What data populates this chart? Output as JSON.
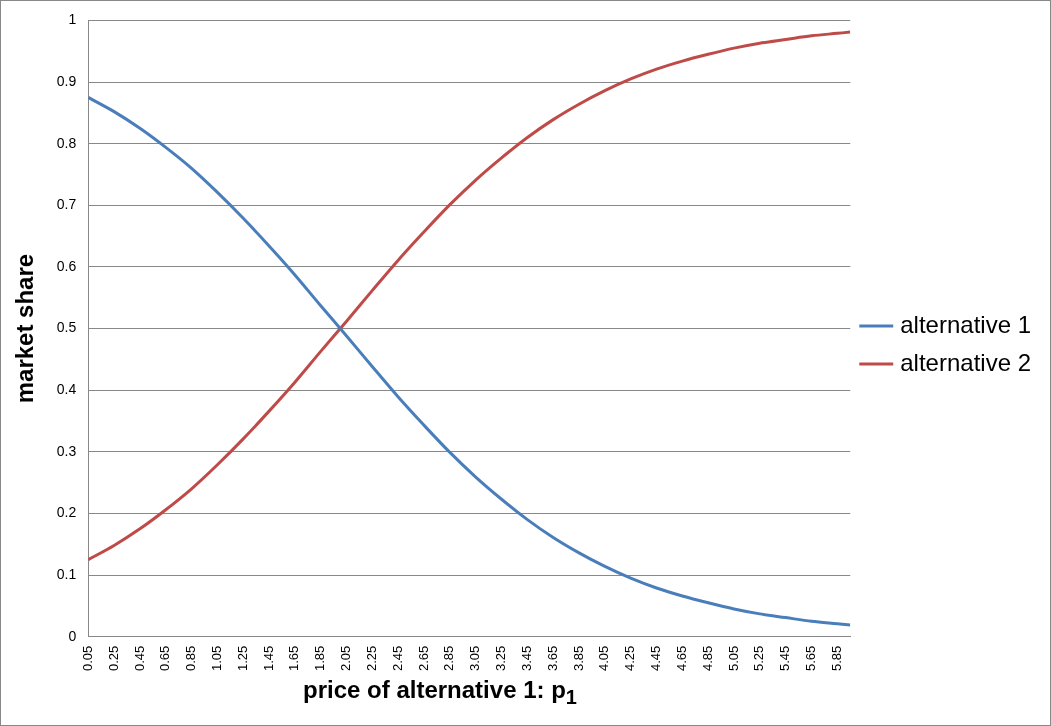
{
  "chart_data": {
    "type": "line",
    "xlabel": "price of alternative 1: p$_{1}$",
    "ylabel": "market share",
    "x": [
      0.05,
      0.25,
      0.45,
      0.65,
      0.85,
      1.05,
      1.25,
      1.45,
      1.65,
      1.85,
      2.05,
      2.25,
      2.45,
      2.65,
      2.85,
      3.05,
      3.25,
      3.45,
      3.65,
      3.85,
      4.05,
      4.25,
      4.45,
      4.65,
      4.85,
      5.05,
      5.25,
      5.45,
      5.65,
      5.85,
      5.95
    ],
    "series": [
      {
        "name": "alternative 1",
        "color": "#4a7ebb",
        "values": [
          0.875,
          0.852,
          0.825,
          0.794,
          0.76,
          0.721,
          0.679,
          0.634,
          0.587,
          0.537,
          0.488,
          0.438,
          0.389,
          0.343,
          0.299,
          0.259,
          0.223,
          0.19,
          0.161,
          0.136,
          0.114,
          0.095,
          0.079,
          0.066,
          0.055,
          0.045,
          0.037,
          0.031,
          0.025,
          0.021,
          0.019
        ]
      },
      {
        "name": "alternative 2",
        "color": "#be4b48",
        "values": [
          0.125,
          0.148,
          0.175,
          0.206,
          0.24,
          0.279,
          0.321,
          0.366,
          0.413,
          0.463,
          0.512,
          0.562,
          0.611,
          0.657,
          0.701,
          0.741,
          0.777,
          0.81,
          0.839,
          0.864,
          0.886,
          0.905,
          0.921,
          0.934,
          0.945,
          0.955,
          0.963,
          0.969,
          0.975,
          0.979,
          0.981
        ]
      }
    ],
    "xlim": [
      0.05,
      5.95
    ],
    "xticks": [
      0.05,
      0.25,
      0.45,
      0.65,
      0.85,
      1.05,
      1.25,
      1.45,
      1.65,
      1.85,
      2.05,
      2.25,
      2.45,
      2.65,
      2.85,
      3.05,
      3.25,
      3.45,
      3.65,
      3.85,
      4.05,
      4.25,
      4.45,
      4.65,
      4.85,
      5.05,
      5.25,
      5.45,
      5.65,
      5.85
    ],
    "ylim": [
      0,
      1
    ],
    "yticks": [
      0,
      0.1,
      0.2,
      0.3,
      0.4,
      0.5,
      0.6,
      0.7,
      0.8,
      0.9,
      1
    ],
    "grid": "y",
    "legend": "right",
    "marker": "none",
    "line_style": "solid"
  }
}
